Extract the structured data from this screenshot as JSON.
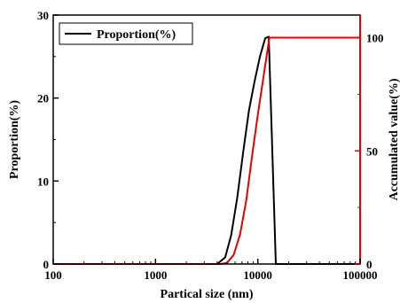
{
  "chart_data": {
    "type": "line",
    "xlabel": "Partical size (nm)",
    "ylabel_left": "Proportion(%)",
    "ylabel_right": "Accumulated value(%)",
    "x_scale": "log",
    "xlim": [
      100,
      100000
    ],
    "ylim_left": [
      0,
      30
    ],
    "ylim_right": [
      0,
      110
    ],
    "x_ticks": [
      "100",
      "1000",
      "10000",
      "100000"
    ],
    "y_ticks_left": [
      "0",
      "10",
      "20",
      "30"
    ],
    "y_ticks_right": [
      "0",
      "50",
      "100"
    ],
    "legend": {
      "placement": "top-left",
      "entries": [
        "Proportion(%)"
      ]
    },
    "grid": false,
    "series": [
      {
        "name": "Proportion(%)",
        "axis": "left",
        "color": "#000000",
        "x": [
          100,
          4000,
          4800,
          5500,
          6300,
          7200,
          8200,
          9300,
          10500,
          11800,
          12800,
          15000,
          100000
        ],
        "y": [
          0,
          0,
          0.8,
          3.5,
          8,
          13.5,
          18.5,
          22,
          25,
          27.2,
          27.4,
          0,
          0
        ]
      },
      {
        "axis": "right",
        "color": "#e60000",
        "x": [
          100,
          4300,
          5000,
          5800,
          6700,
          7700,
          8800,
          10000,
          11300,
          12500,
          13000,
          100000
        ],
        "y": [
          0,
          0,
          0.5,
          4,
          13,
          28,
          48,
          66,
          82,
          95,
          100,
          100
        ]
      }
    ]
  }
}
